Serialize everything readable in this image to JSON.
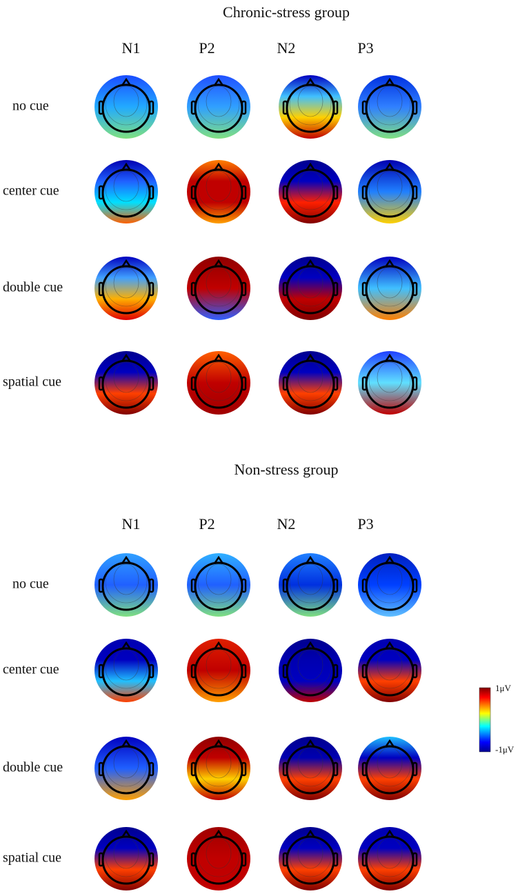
{
  "groups": [
    {
      "title": "Chronic-stress group",
      "columns": [
        "N1",
        "P2",
        "N2",
        "P3"
      ],
      "rows": [
        "no cue",
        "center cue",
        "double cue",
        "spatial cue"
      ]
    },
    {
      "title": "Non-stress group",
      "columns": [
        "N1",
        "P2",
        "N2",
        "P3"
      ],
      "rows": [
        "no cue",
        "center cue",
        "double cue",
        "spatial cue"
      ]
    }
  ],
  "colorbar": {
    "max_label": "1μV",
    "min_label": "-1μV"
  }
}
